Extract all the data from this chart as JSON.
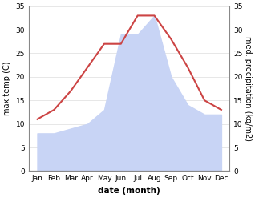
{
  "months": [
    "Jan",
    "Feb",
    "Mar",
    "Apr",
    "May",
    "Jun",
    "Jul",
    "Aug",
    "Sep",
    "Oct",
    "Nov",
    "Dec"
  ],
  "temp": [
    11,
    13,
    17,
    22,
    27,
    27,
    33,
    33,
    28,
    22,
    15,
    13
  ],
  "precip": [
    8,
    8,
    9,
    10,
    13,
    29,
    29,
    33,
    20,
    14,
    12,
    12
  ],
  "temp_color": "#cc4444",
  "precip_fill_color": "#c8d4f5",
  "ylim_left": [
    0,
    35
  ],
  "ylim_right": [
    0,
    35
  ],
  "xlabel": "date (month)",
  "ylabel_left": "max temp (C)",
  "ylabel_right": "med. precipitation (kg/m2)",
  "bg_color": "#ffffff",
  "yticks": [
    0,
    5,
    10,
    15,
    20,
    25,
    30,
    35
  ],
  "tick_fontsize": 6.5,
  "label_fontsize": 7,
  "xlabel_fontsize": 7.5,
  "linewidth": 1.5
}
